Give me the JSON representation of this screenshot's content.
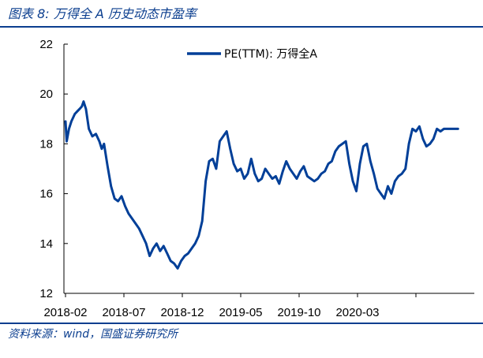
{
  "header": {
    "title": "图表 8:  万得全 A 历史动态市盈率"
  },
  "footer": {
    "source": "资料来源：wind，国盛证券研究所"
  },
  "colors": {
    "accent": "#0b3e8f",
    "series": "#003f98",
    "axis": "#000000"
  },
  "chart_data": {
    "type": "line",
    "title": "",
    "xlabel": "",
    "ylabel": "",
    "ylim": [
      12,
      22
    ],
    "yticks": [
      12,
      14,
      16,
      18,
      20,
      22
    ],
    "x_tick_labels": [
      "2018-02",
      "2018-07",
      "2018-12",
      "2019-05",
      "2019-10",
      "2020-03"
    ],
    "legend": {
      "position": "top-center",
      "label": "PE(TTM):  万得全A"
    },
    "grid": false,
    "series": [
      {
        "name": "PE(TTM):  万得全A",
        "x_unit": "months since 2018-02",
        "x": [
          0,
          0.1,
          0.3,
          0.5,
          0.8,
          1.0,
          1.2,
          1.4,
          1.55,
          1.75,
          2.0,
          2.3,
          2.6,
          2.9,
          3.1,
          3.3,
          3.6,
          3.9,
          4.2,
          4.5,
          4.8,
          5.1,
          5.4,
          5.7,
          6.0,
          6.3,
          6.6,
          6.9,
          7.2,
          7.5,
          7.8,
          8.1,
          8.4,
          8.7,
          9.0,
          9.3,
          9.6,
          9.9,
          10.2,
          10.5,
          10.8,
          11.1,
          11.4,
          11.7,
          12.0,
          12.3,
          12.6,
          12.9,
          13.2,
          13.5,
          13.8,
          14.1,
          14.4,
          14.7,
          15.0,
          15.3,
          15.6,
          15.9,
          16.2,
          16.5,
          16.8,
          17.1,
          17.4,
          17.7,
          18.0,
          18.3,
          18.6,
          18.9,
          19.2,
          19.5,
          19.8,
          20.1,
          20.4,
          20.7,
          21.0,
          21.3,
          21.6,
          21.9,
          22.2,
          22.5,
          22.8,
          23.1,
          23.4,
          23.7,
          24.0,
          24.3,
          24.6,
          24.9,
          25.2,
          25.5,
          25.8,
          26.1,
          26.4,
          26.7,
          27.0,
          27.3,
          27.6,
          27.9,
          28.2,
          28.5,
          28.8,
          29.1,
          29.4,
          29.7,
          30.0,
          30.3,
          30.6,
          30.9,
          31.2,
          31.5,
          31.8,
          32.1,
          32.4,
          32.7,
          33.0,
          33.3,
          33.6
        ],
        "values": [
          18.9,
          18.1,
          18.6,
          18.9,
          19.2,
          19.3,
          19.4,
          19.5,
          19.7,
          19.4,
          18.6,
          18.3,
          18.4,
          18.1,
          17.8,
          18.0,
          17.1,
          16.3,
          15.8,
          15.7,
          15.9,
          15.5,
          15.2,
          15.0,
          14.8,
          14.6,
          14.3,
          14.0,
          13.5,
          13.8,
          14.0,
          13.7,
          13.9,
          13.6,
          13.3,
          13.2,
          13.0,
          13.3,
          13.5,
          13.6,
          13.8,
          14.0,
          14.3,
          14.9,
          16.5,
          17.3,
          17.4,
          17.0,
          18.1,
          18.3,
          18.5,
          17.8,
          17.2,
          16.9,
          17.0,
          16.6,
          16.8,
          17.4,
          16.8,
          16.5,
          16.6,
          17.0,
          16.8,
          16.6,
          16.7,
          16.4,
          16.9,
          17.3,
          17.0,
          16.8,
          16.6,
          16.9,
          17.1,
          16.7,
          16.6,
          16.5,
          16.6,
          16.8,
          16.9,
          17.2,
          17.3,
          17.7,
          17.9,
          18.0,
          18.1,
          17.2,
          16.5,
          16.1,
          17.2,
          17.9,
          18.0,
          17.3,
          16.8,
          16.2,
          16.0,
          15.8,
          16.3,
          16.0,
          16.5,
          16.7,
          16.8,
          17.0,
          18.0,
          18.6,
          18.5,
          18.7,
          18.2,
          17.9,
          18.0,
          18.2,
          18.6,
          18.5,
          18.6,
          18.6,
          18.6,
          18.6,
          18.6
        ]
      }
    ]
  }
}
